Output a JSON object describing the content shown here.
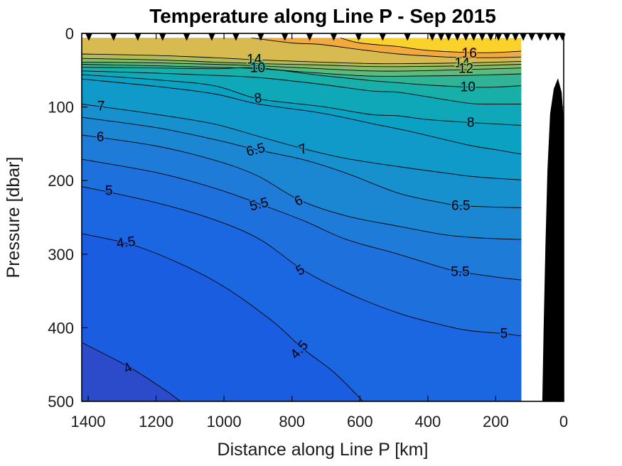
{
  "title": "Temperature along Line P - Sep 2015",
  "colors": {
    "background": "#FFFFFF",
    "contour_line": "#000000",
    "axis_text": "#1A1A1A",
    "title_text": "#000000",
    "bathymetry": "#000000",
    "station_marker": "#000000",
    "top_band_gt16": "#FBD12C"
  },
  "chart_data": {
    "type": "filled-contour-section",
    "title": "Temperature along Line P - Sep 2015",
    "xlabel": "Distance along Line P [km]",
    "ylabel": "Pressure [dbar]",
    "x_ticks": [
      1400,
      1200,
      1000,
      800,
      600,
      400,
      200,
      0
    ],
    "y_ticks": [
      0,
      100,
      200,
      300,
      400,
      500
    ],
    "x_axis_reversed": true,
    "km_at_left_edge": 1419,
    "ylim": [
      0,
      500
    ],
    "data_top_dbar": 6,
    "data_right_km": 125,
    "colormap": "parula",
    "units": "degC",
    "station_markers_km": [
      1398,
      1325,
      1254,
      1181,
      1110,
      1036,
      965,
      892,
      821,
      748,
      677,
      604,
      533,
      460,
      387,
      361,
      339,
      313,
      288,
      265,
      240,
      215,
      192,
      167,
      142,
      119,
      94,
      69,
      46,
      21,
      4
    ],
    "bathymetry_outline_km_dbar": [
      [
        17,
        61
      ],
      [
        6,
        80
      ],
      [
        0,
        117
      ],
      [
        0,
        500
      ],
      [
        63,
        500
      ],
      [
        59,
        399
      ],
      [
        54,
        292
      ],
      [
        48,
        186
      ],
      [
        40,
        109
      ],
      [
        29,
        75
      ]
    ],
    "contours": [
      {
        "level": 16,
        "fill_below": "#F2A93E",
        "points": [
          [
            658,
            6
          ],
          [
            600,
            13
          ],
          [
            487,
            18
          ],
          [
            403,
            23
          ],
          [
            278,
            26
          ],
          [
            200,
            26
          ],
          [
            125,
            24
          ]
        ]
      },
      {
        "level": 15,
        "fill_below": "#D8BB50",
        "points": [
          [
            921,
            6
          ],
          [
            800,
            13
          ],
          [
            717,
            15
          ],
          [
            600,
            22
          ],
          [
            487,
            28
          ],
          [
            350,
            32
          ],
          [
            278,
            33
          ],
          [
            200,
            33
          ],
          [
            125,
            32
          ]
        ]
      },
      {
        "level": 14,
        "fill_below": "#AFBC59",
        "points": [
          [
            1419,
            28
          ],
          [
            1200,
            30
          ],
          [
            1030,
            33
          ],
          [
            898,
            36
          ],
          [
            717,
            39
          ],
          [
            570,
            41
          ],
          [
            445,
            41
          ],
          [
            278,
            40
          ],
          [
            125,
            38
          ]
        ]
      },
      {
        "level": 13,
        "fill_below": "#86BC67",
        "points": [
          [
            1419,
            34
          ],
          [
            1200,
            36
          ],
          [
            1030,
            39
          ],
          [
            898,
            41
          ],
          [
            717,
            43
          ],
          [
            570,
            45
          ],
          [
            445,
            45
          ],
          [
            278,
            44
          ],
          [
            125,
            42
          ]
        ]
      },
      {
        "level": 12,
        "fill_below": "#5BBA7D",
        "points": [
          [
            1419,
            39
          ],
          [
            1200,
            40
          ],
          [
            1030,
            42
          ],
          [
            898,
            44
          ],
          [
            717,
            48
          ],
          [
            570,
            51
          ],
          [
            445,
            51
          ],
          [
            278,
            49
          ],
          [
            125,
            47
          ]
        ]
      },
      {
        "level": 11,
        "fill_below": "#30B495",
        "points": [
          [
            1419,
            42
          ],
          [
            1200,
            44
          ],
          [
            1030,
            46
          ],
          [
            898,
            48
          ],
          [
            717,
            54
          ],
          [
            570,
            58
          ],
          [
            445,
            58
          ],
          [
            278,
            57
          ],
          [
            125,
            55
          ]
        ]
      },
      {
        "level": 10,
        "fill_below": "#18AFA8",
        "points": [
          [
            1419,
            46
          ],
          [
            1200,
            47
          ],
          [
            1030,
            48
          ],
          [
            898,
            47
          ],
          [
            717,
            57
          ],
          [
            570,
            64
          ],
          [
            487,
            67
          ],
          [
            403,
            70
          ],
          [
            278,
            73
          ],
          [
            200,
            73
          ],
          [
            125,
            71
          ]
        ]
      },
      {
        "level": 9,
        "fill_below": "#0FA8B8",
        "points": [
          [
            1419,
            51
          ],
          [
            1200,
            54
          ],
          [
            1030,
            57
          ],
          [
            898,
            60
          ],
          [
            717,
            69
          ],
          [
            570,
            78
          ],
          [
            487,
            80
          ],
          [
            403,
            86
          ],
          [
            278,
            95
          ],
          [
            200,
            96
          ],
          [
            125,
            96
          ]
        ]
      },
      {
        "level": 8,
        "fill_below": "#0BA1C2",
        "points": [
          [
            1419,
            56
          ],
          [
            1200,
            63
          ],
          [
            1030,
            71
          ],
          [
            898,
            89
          ],
          [
            717,
            99
          ],
          [
            570,
            110
          ],
          [
            487,
            112
          ],
          [
            403,
            117
          ],
          [
            278,
            121
          ],
          [
            200,
            123
          ],
          [
            125,
            125
          ]
        ]
      },
      {
        "level": 7.5,
        "fill_below": "#0F9ACA",
        "points": [
          [
            1419,
            62
          ],
          [
            1200,
            72
          ],
          [
            1030,
            82
          ],
          [
            898,
            96
          ],
          [
            717,
            108
          ],
          [
            570,
            122
          ],
          [
            445,
            134
          ],
          [
            278,
            152
          ],
          [
            200,
            158
          ],
          [
            125,
            164
          ]
        ]
      },
      {
        "level": 7,
        "fill_below": "#1691CE",
        "points": [
          [
            1419,
            96
          ],
          [
            1200,
            110
          ],
          [
            1030,
            123
          ],
          [
            898,
            140
          ],
          [
            763,
            157
          ],
          [
            640,
            170
          ],
          [
            487,
            181
          ],
          [
            360,
            189
          ],
          [
            278,
            194
          ],
          [
            200,
            197
          ],
          [
            125,
            199
          ]
        ]
      },
      {
        "level": 6.5,
        "fill_below": "#1B87D3",
        "points": [
          [
            1419,
            114
          ],
          [
            1200,
            128
          ],
          [
            1030,
            144
          ],
          [
            904,
            158
          ],
          [
            763,
            172
          ],
          [
            640,
            190
          ],
          [
            487,
            217
          ],
          [
            360,
            230
          ],
          [
            303,
            234
          ],
          [
            200,
            236
          ],
          [
            125,
            237
          ]
        ]
      },
      {
        "level": 6,
        "fill_below": "#1E7CD8",
        "points": [
          [
            1419,
            138
          ],
          [
            1200,
            153
          ],
          [
            1030,
            172
          ],
          [
            904,
            193
          ],
          [
            775,
            227
          ],
          [
            640,
            248
          ],
          [
            487,
            262
          ],
          [
            360,
            273
          ],
          [
            278,
            277
          ],
          [
            200,
            279
          ],
          [
            125,
            280
          ]
        ]
      },
      {
        "level": 5.5,
        "fill_below": "#1E71DD",
        "points": [
          [
            1419,
            171
          ],
          [
            1200,
            189
          ],
          [
            1030,
            210
          ],
          [
            894,
            232
          ],
          [
            763,
            255
          ],
          [
            640,
            280
          ],
          [
            487,
            300
          ],
          [
            360,
            318
          ],
          [
            305,
            324
          ],
          [
            200,
            331
          ],
          [
            125,
            335
          ]
        ]
      },
      {
        "level": 5,
        "fill_below": "#1B66E1",
        "points": [
          [
            1419,
            208
          ],
          [
            1200,
            230
          ],
          [
            1030,
            253
          ],
          [
            894,
            280
          ],
          [
            769,
            321
          ],
          [
            640,
            352
          ],
          [
            487,
            380
          ],
          [
            360,
            396
          ],
          [
            276,
            404
          ],
          [
            176,
            408
          ],
          [
            125,
            411
          ]
        ]
      },
      {
        "level": 4.5,
        "fill_below": "#1A5DE0",
        "points": [
          [
            1419,
            272
          ],
          [
            1239,
            292
          ],
          [
            1030,
            336
          ],
          [
            863,
            389
          ],
          [
            769,
            428
          ],
          [
            675,
            461
          ],
          [
            591,
            500
          ]
        ]
      },
      {
        "level": 4,
        "fill_below": "#2C4BCB",
        "points": [
          [
            1419,
            420
          ],
          [
            1277,
            454
          ],
          [
            1176,
            484
          ],
          [
            1128,
            500
          ]
        ]
      }
    ],
    "contour_labels": [
      {
        "text": "14",
        "km": 911,
        "dbar": 35,
        "rot": 0,
        "halo": "#AFBC59"
      },
      {
        "text": "10",
        "km": 901,
        "dbar": 47,
        "rot": 0,
        "halo": "#18AFA8"
      },
      {
        "text": "8",
        "km": 898,
        "dbar": 88,
        "rot": -8,
        "halo": "#0BA1C2"
      },
      {
        "text": "16",
        "km": 278,
        "dbar": 27,
        "rot": 0,
        "halo": "#F2A93E"
      },
      {
        "text": "14",
        "km": 299,
        "dbar": 40,
        "rot": 0,
        "halo": "#AFBC59"
      },
      {
        "text": "12",
        "km": 288,
        "dbar": 48,
        "rot": 0,
        "halo": "#86BC67"
      },
      {
        "text": "10",
        "km": 282,
        "dbar": 73,
        "rot": 0,
        "halo": "#18AFA8"
      },
      {
        "text": "8",
        "km": 274,
        "dbar": 121,
        "rot": 0,
        "halo": "#0BA1C2"
      },
      {
        "text": "7",
        "km": 1362,
        "dbar": 99,
        "rot": 0,
        "halo": "#1691CE"
      },
      {
        "text": "6",
        "km": 1364,
        "dbar": 141,
        "rot": 0,
        "halo": "#1E7CD8"
      },
      {
        "text": "5",
        "km": 1339,
        "dbar": 214,
        "rot": 0,
        "halo": "#1B66E1"
      },
      {
        "text": "4.5",
        "km": 1287,
        "dbar": 284,
        "rot": -8,
        "halo": "#1A5DE0"
      },
      {
        "text": "7",
        "km": 763,
        "dbar": 157,
        "rot": -22,
        "halo": "#1691CE"
      },
      {
        "text": "6.5",
        "km": 904,
        "dbar": 158,
        "rot": -14,
        "halo": "#1B87D3"
      },
      {
        "text": "6",
        "km": 775,
        "dbar": 227,
        "rot": -25,
        "halo": "#1E7CD8"
      },
      {
        "text": "5.5",
        "km": 894,
        "dbar": 232,
        "rot": -14,
        "halo": "#1E71DD"
      },
      {
        "text": "5",
        "km": 769,
        "dbar": 321,
        "rot": -30,
        "halo": "#1B66E1"
      },
      {
        "text": "4.5",
        "km": 769,
        "dbar": 428,
        "rot": -48,
        "halo": "#1A5DE0"
      },
      {
        "text": "4",
        "km": 1277,
        "dbar": 454,
        "rot": -30,
        "halo": "#2450D2"
      },
      {
        "text": "6.5",
        "km": 303,
        "dbar": 234,
        "rot": 0,
        "halo": "#1B87D3"
      },
      {
        "text": "5.5",
        "km": 305,
        "dbar": 324,
        "rot": 0,
        "halo": "#1E71DD"
      },
      {
        "text": "5",
        "km": 176,
        "dbar": 408,
        "rot": 0,
        "halo": "#1B66E1"
      }
    ]
  }
}
